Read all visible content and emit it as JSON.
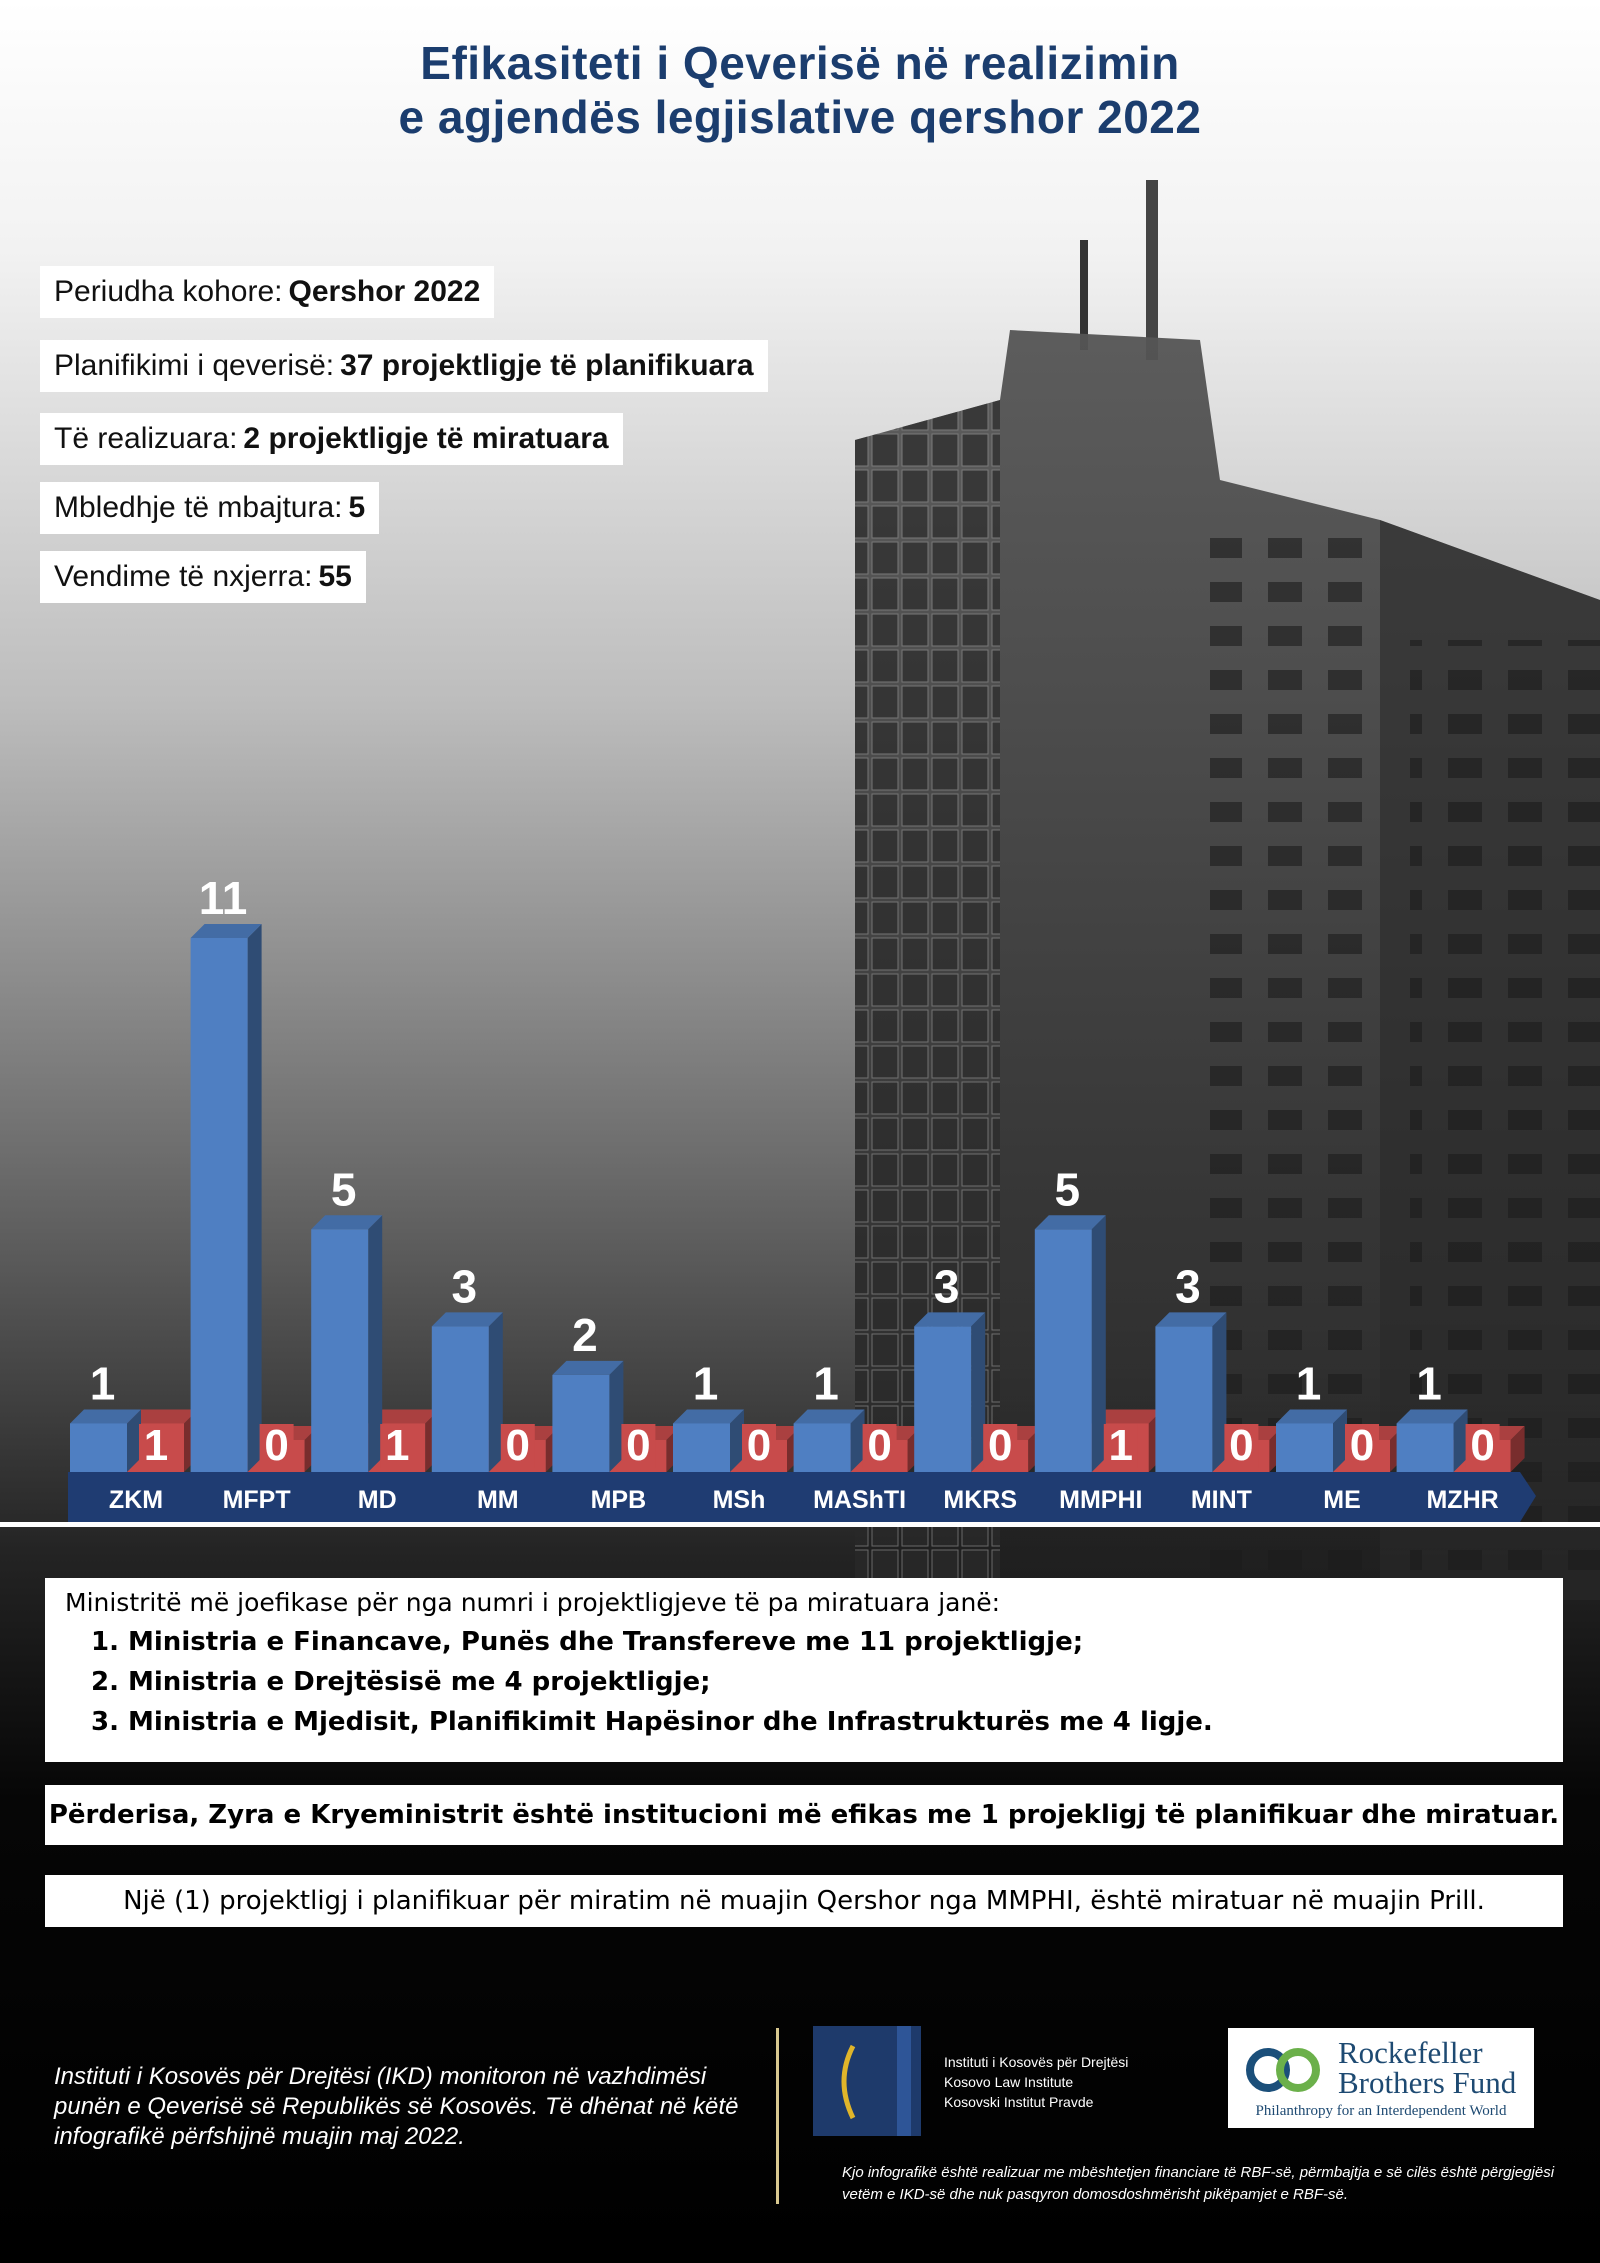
{
  "title": {
    "line1": "Efikasiteti i Qeverisë në realizimin",
    "line2": "e agjendës legjislative qershor 2022"
  },
  "info": [
    {
      "label": "Periudha kohore:",
      "value": "Qershor 2022"
    },
    {
      "label": "Planifikimi i qeverisë:",
      "value": "37 projektligje të planifikuara"
    },
    {
      "label": "Të realizuara:",
      "value": "2 projektligje të miratuara"
    },
    {
      "label": "Mbledhje të mbajtura:",
      "value": "5"
    },
    {
      "label": "Vendime të nxjerra:",
      "value": "55"
    }
  ],
  "chart_data": {
    "type": "bar",
    "categories": [
      "ZKM",
      "MFPT",
      "MD",
      "MM",
      "MPB",
      "MSh",
      "MAShTI",
      "MKRS",
      "MMPHI",
      "MINT",
      "ME",
      "MZHR"
    ],
    "series": [
      {
        "values": [
          1,
          11,
          5,
          3,
          2,
          1,
          1,
          3,
          5,
          3,
          1,
          1
        ]
      },
      {
        "values": [
          1,
          0,
          1,
          0,
          0,
          0,
          0,
          0,
          1,
          0,
          0,
          0
        ]
      }
    ],
    "colors": {
      "planned": "#4f7fc2",
      "approved": "#c84b4b",
      "axis": "#1f3c72"
    },
    "ylim": [
      0,
      11
    ]
  },
  "summary": {
    "intro": "Ministritë më joefikase për nga numri i projektligjeve të pa miratuara janë:",
    "items": [
      "1. Ministria e Financave, Punës dhe Transfereve me 11 projektligje;",
      "2. Ministria e Drejtësisë me 4 projektligje;",
      "3. Ministria e Mjedisit, Planifikimit Hapësinor dhe Infrastrukturës me 4 ligje."
    ]
  },
  "highlight": "Përderisa, Zyra e Kryeministrit është institucioni më efikas me 1 projekligj të planifikuar dhe miratuar.",
  "note": "Një (1) projektligj i planifikuar për miratim në muajin Qershor nga MMPHI, është miratuar në muajin Prill.",
  "footer": {
    "ikd_note": "Instituti i Kosovës për Drejtësi (IKD) monitoron në vazhdimësi punën e Qeverisë së Republikës së Kosovës. Të dhënat në këtë infografikë përfshijnë muajin maj 2022.",
    "ikd_logo_lines": [
      "Instituti i Kosovës për Drejtësi",
      "Kosovo Law Institute",
      "Kosovski Institut Pravde"
    ],
    "rbf_name_line1": "Rockefeller",
    "rbf_name_line2": "Brothers Fund",
    "rbf_tagline": "Philanthropy for an Interdependent World",
    "disclaimer": "Kjo infografikë është realizuar me mbështetjen financiare të RBF-së, përmbajtja e së cilës është përgjegjësi vetëm e IKD-së dhe nuk pasqyron domosdoshmërisht pikëpamjet e RBF-së."
  }
}
